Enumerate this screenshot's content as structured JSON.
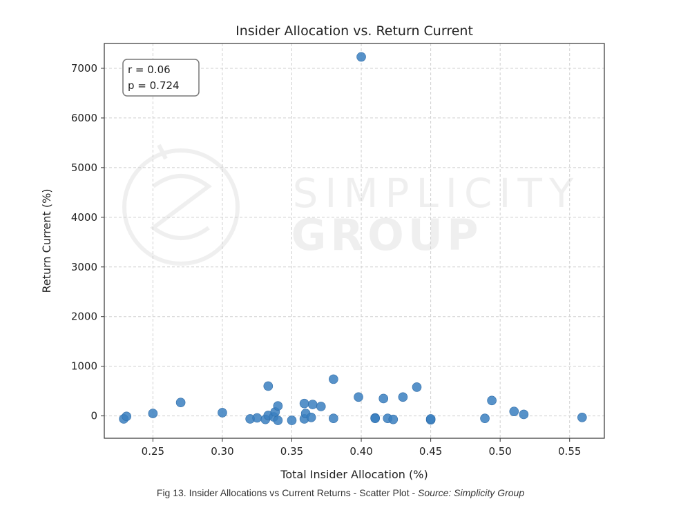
{
  "chart_data": {
    "type": "scatter",
    "title": "Insider Allocation vs. Return Current",
    "xlabel": "Total Insider Allocation (%)",
    "ylabel": "Return Current (%)",
    "xlim": [
      0.215,
      0.575
    ],
    "ylim": [
      -450,
      7500
    ],
    "x_ticks": [
      0.25,
      0.3,
      0.35,
      0.4,
      0.45,
      0.5,
      0.55
    ],
    "x_tick_labels": [
      "0.25",
      "0.30",
      "0.35",
      "0.40",
      "0.45",
      "0.50",
      "0.55"
    ],
    "y_ticks": [
      0,
      1000,
      2000,
      3000,
      4000,
      5000,
      6000,
      7000
    ],
    "y_tick_labels": [
      "0",
      "1000",
      "2000",
      "3000",
      "4000",
      "5000",
      "6000",
      "7000"
    ],
    "grid": true,
    "point_color": "#3a7fc0",
    "annotation": [
      "r = 0.06",
      "p = 0.724"
    ],
    "points": [
      {
        "x": 0.229,
        "y": -60
      },
      {
        "x": 0.231,
        "y": -10
      },
      {
        "x": 0.25,
        "y": 50
      },
      {
        "x": 0.27,
        "y": 270
      },
      {
        "x": 0.3,
        "y": 65
      },
      {
        "x": 0.32,
        "y": -60
      },
      {
        "x": 0.325,
        "y": -40
      },
      {
        "x": 0.331,
        "y": -70
      },
      {
        "x": 0.333,
        "y": 600
      },
      {
        "x": 0.333,
        "y": 10
      },
      {
        "x": 0.337,
        "y": -20
      },
      {
        "x": 0.338,
        "y": 80
      },
      {
        "x": 0.34,
        "y": -90
      },
      {
        "x": 0.34,
        "y": 200
      },
      {
        "x": 0.35,
        "y": -90
      },
      {
        "x": 0.359,
        "y": 250
      },
      {
        "x": 0.359,
        "y": -60
      },
      {
        "x": 0.36,
        "y": 50
      },
      {
        "x": 0.364,
        "y": -30
      },
      {
        "x": 0.365,
        "y": 230
      },
      {
        "x": 0.371,
        "y": 190
      },
      {
        "x": 0.38,
        "y": 740
      },
      {
        "x": 0.38,
        "y": -50
      },
      {
        "x": 0.398,
        "y": 380
      },
      {
        "x": 0.4,
        "y": 7230
      },
      {
        "x": 0.41,
        "y": -40
      },
      {
        "x": 0.41,
        "y": -50
      },
      {
        "x": 0.416,
        "y": 350
      },
      {
        "x": 0.419,
        "y": -50
      },
      {
        "x": 0.423,
        "y": -70
      },
      {
        "x": 0.43,
        "y": 380
      },
      {
        "x": 0.44,
        "y": 580
      },
      {
        "x": 0.45,
        "y": -80
      },
      {
        "x": 0.45,
        "y": -60
      },
      {
        "x": 0.489,
        "y": -50
      },
      {
        "x": 0.494,
        "y": 310
      },
      {
        "x": 0.51,
        "y": 90
      },
      {
        "x": 0.517,
        "y": 30
      },
      {
        "x": 0.559,
        "y": -30
      }
    ]
  },
  "watermark": {
    "line1": "SIMPLICITY",
    "line2": "GROUP"
  },
  "caption": {
    "text": "Fig 13. Insider Allocations vs Current Returns - Scatter Plot - ",
    "source": "Source: Simplicity Group"
  }
}
